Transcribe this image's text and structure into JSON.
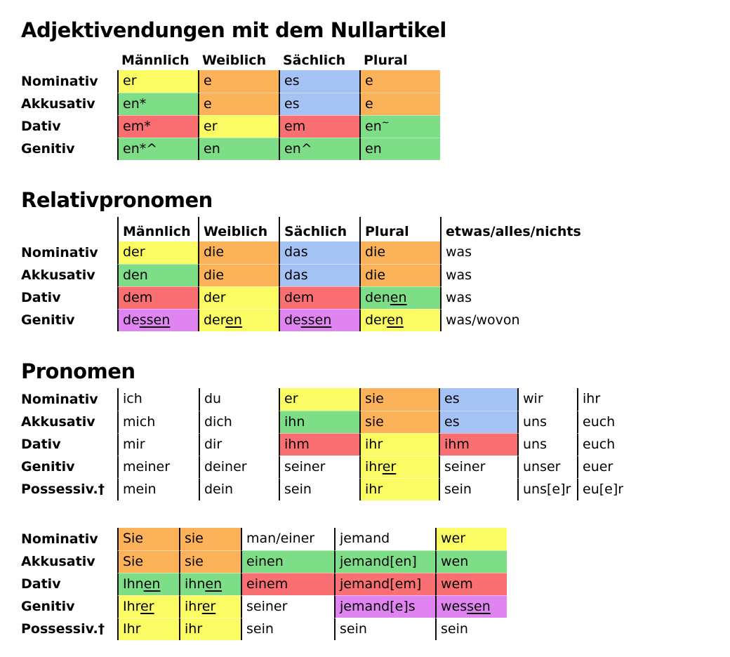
{
  "colors": {
    "yellow": "#FBFB63",
    "orange": "#FBB259",
    "blue": "#A4C2F4",
    "green": "#7DDE87",
    "red": "#F96F72",
    "purple": "#E084F2",
    "white": "#FFFFFF",
    "line": "#0D0D0D"
  },
  "sections": [
    {
      "title": "Adjektivendungen mit dem Nullartikel",
      "headers": [
        "Männlich",
        "Weiblich",
        "Sächlich",
        "Plural"
      ],
      "header_lines": false,
      "row_labels": [
        "Nominativ",
        "Akkusativ",
        "Dativ",
        "Genitiv"
      ],
      "rows": [
        [
          {
            "t": "er",
            "bg": "yellow"
          },
          {
            "t": "e",
            "bg": "orange"
          },
          {
            "t": "es",
            "bg": "blue"
          },
          {
            "t": "e",
            "bg": "orange"
          }
        ],
        [
          {
            "t": "en*",
            "bg": "green"
          },
          {
            "t": "e",
            "bg": "orange"
          },
          {
            "t": "es",
            "bg": "blue"
          },
          {
            "t": "e",
            "bg": "orange"
          }
        ],
        [
          {
            "t": "em*",
            "bg": "red"
          },
          {
            "t": "er",
            "bg": "yellow"
          },
          {
            "t": "em",
            "bg": "red"
          },
          {
            "t": "en",
            "sup": "~",
            "bg": "green"
          }
        ],
        [
          {
            "t": "en*^",
            "bg": "green"
          },
          {
            "t": "en",
            "bg": "green"
          },
          {
            "t": "en^",
            "bg": "green"
          },
          {
            "t": "en",
            "bg": "green"
          }
        ]
      ]
    },
    {
      "title": "Relativpronomen",
      "headers": [
        "Männlich",
        "Weiblich",
        "Sächlich",
        "Plural",
        "etwas/alles/nichts"
      ],
      "header_lines": true,
      "row_labels": [
        "Nominativ",
        "Akkusativ",
        "Dativ",
        "Genitiv"
      ],
      "rows": [
        [
          {
            "t": "der",
            "bg": "yellow"
          },
          {
            "t": "die",
            "bg": "orange"
          },
          {
            "t": "das",
            "bg": "blue"
          },
          {
            "t": "die",
            "bg": "orange"
          },
          {
            "t": "was",
            "bg": "white"
          }
        ],
        [
          {
            "t": "den",
            "bg": "green"
          },
          {
            "t": "die",
            "bg": "orange"
          },
          {
            "t": "das",
            "bg": "blue"
          },
          {
            "t": "die",
            "bg": "orange"
          },
          {
            "t": "was",
            "bg": "white"
          }
        ],
        [
          {
            "t": "dem",
            "bg": "red"
          },
          {
            "t": "der",
            "bg": "yellow"
          },
          {
            "t": "dem",
            "bg": "red"
          },
          {
            "t": "denen",
            "u": "en",
            "bg": "green"
          },
          {
            "t": "was",
            "bg": "white"
          }
        ],
        [
          {
            "t": "dessen",
            "u": "ssen",
            "bg": "purple"
          },
          {
            "t": "deren",
            "u": "en",
            "bg": "yellow"
          },
          {
            "t": "dessen",
            "u": "ssen",
            "bg": "purple"
          },
          {
            "t": "deren",
            "u": "en",
            "bg": "yellow"
          },
          {
            "t": "was/wovon",
            "bg": "white"
          }
        ]
      ]
    },
    {
      "title": "Pronomen",
      "headers": null,
      "header_lines": false,
      "row_labels": [
        "Nominativ",
        "Akkusativ",
        "Dativ",
        "Genitiv",
        "Possessiv.†"
      ],
      "rows": [
        [
          {
            "t": "ich",
            "bg": "white"
          },
          {
            "t": "du",
            "bg": "white"
          },
          {
            "t": "er",
            "bg": "yellow"
          },
          {
            "t": "sie",
            "bg": "orange"
          },
          {
            "t": "es",
            "bg": "blue"
          },
          {
            "t": "wir",
            "bg": "white"
          },
          {
            "t": "ihr",
            "bg": "white"
          }
        ],
        [
          {
            "t": "mich",
            "bg": "white"
          },
          {
            "t": "dich",
            "bg": "white"
          },
          {
            "t": "ihn",
            "bg": "green"
          },
          {
            "t": "sie",
            "bg": "orange"
          },
          {
            "t": "es",
            "bg": "blue"
          },
          {
            "t": "uns",
            "bg": "white"
          },
          {
            "t": "euch",
            "bg": "white"
          }
        ],
        [
          {
            "t": "mir",
            "bg": "white"
          },
          {
            "t": "dir",
            "bg": "white"
          },
          {
            "t": "ihm",
            "bg": "red"
          },
          {
            "t": "ihr",
            "bg": "yellow"
          },
          {
            "t": "ihm",
            "bg": "red"
          },
          {
            "t": "uns",
            "bg": "white"
          },
          {
            "t": "euch",
            "bg": "white"
          }
        ],
        [
          {
            "t": "meiner",
            "bg": "white"
          },
          {
            "t": "deiner",
            "bg": "white"
          },
          {
            "t": "seiner",
            "bg": "white"
          },
          {
            "t": "ihrer",
            "u": "er",
            "bg": "yellow"
          },
          {
            "t": "seiner",
            "bg": "white"
          },
          {
            "t": "unser",
            "bg": "white"
          },
          {
            "t": "euer",
            "bg": "white"
          }
        ],
        [
          {
            "t": "mein",
            "bg": "white"
          },
          {
            "t": "dein",
            "bg": "white"
          },
          {
            "t": "sein",
            "bg": "white"
          },
          {
            "t": "ihr",
            "bg": "yellow"
          },
          {
            "t": "sein",
            "bg": "white"
          },
          {
            "t": "uns[e]r",
            "bg": "white"
          },
          {
            "t": "eu[e]r",
            "bg": "white"
          }
        ]
      ]
    },
    {
      "title": null,
      "headers": null,
      "header_lines": false,
      "row_labels": [
        "Nominativ",
        "Akkusativ",
        "Dativ",
        "Genitiv",
        "Possessiv.†"
      ],
      "rows": [
        [
          {
            "t": "Sie",
            "bg": "orange"
          },
          {
            "t": "sie",
            "bg": "orange"
          },
          {
            "t": "man/einer",
            "bg": "white"
          },
          {
            "t": "jemand",
            "bg": "white"
          },
          {
            "t": "wer",
            "bg": "yellow"
          }
        ],
        [
          {
            "t": "Sie",
            "bg": "orange"
          },
          {
            "t": "sie",
            "bg": "orange"
          },
          {
            "t": "einen",
            "bg": "green"
          },
          {
            "t": "jemand[en]",
            "bg": "green"
          },
          {
            "t": "wen",
            "bg": "green"
          }
        ],
        [
          {
            "t": "Ihnen",
            "u": "en",
            "bg": "green"
          },
          {
            "t": "ihnen",
            "u": "en",
            "bg": "green"
          },
          {
            "t": "einem",
            "bg": "red"
          },
          {
            "t": "jemand[em]",
            "bg": "red"
          },
          {
            "t": "wem",
            "bg": "red"
          }
        ],
        [
          {
            "t": "Ihrer",
            "u": "er",
            "bg": "yellow"
          },
          {
            "t": "ihrer",
            "u": "er",
            "bg": "yellow"
          },
          {
            "t": "seiner",
            "bg": "white"
          },
          {
            "t": "jemand[e]s",
            "bg": "purple"
          },
          {
            "t": "wessen",
            "u": "sen",
            "bg": "purple"
          }
        ],
        [
          {
            "t": "Ihr",
            "bg": "yellow"
          },
          {
            "t": "ihr",
            "bg": "yellow"
          },
          {
            "t": "sein",
            "bg": "white"
          },
          {
            "t": "sein",
            "bg": "white"
          },
          {
            "t": "sein",
            "bg": "white"
          }
        ]
      ]
    }
  ]
}
